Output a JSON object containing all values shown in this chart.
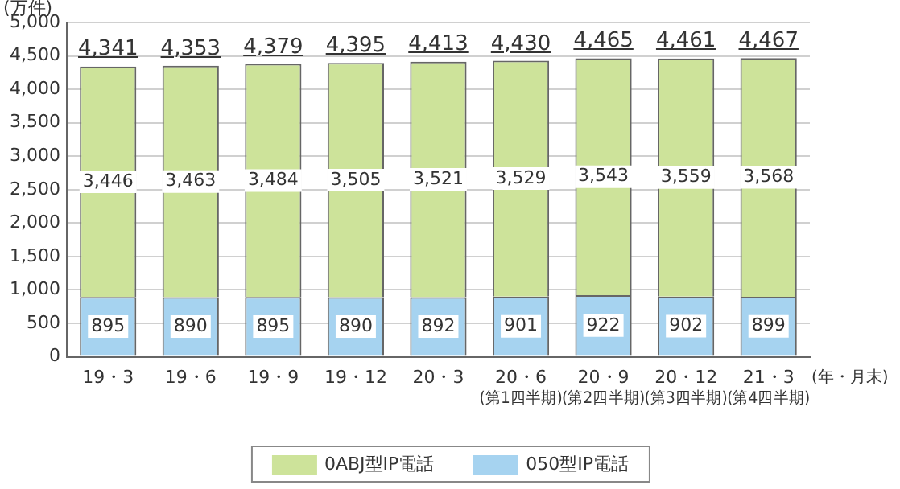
{
  "chart_data": {
    "type": "bar",
    "stacked": true,
    "ylabel": "(万件)",
    "xlabel": "(年・月末)",
    "categories": [
      "19・3",
      "19・6",
      "19・9",
      "19・12",
      "20・3",
      "20・6\n(第1四半期)",
      "20・9\n(第2四半期)",
      "20・12\n(第3四半期)",
      "21・3\n(第4四半期)"
    ],
    "series": [
      {
        "name": "050型IP電話",
        "color": "#a6d3f0",
        "values": [
          895,
          890,
          895,
          890,
          892,
          901,
          922,
          902,
          899
        ],
        "value_labels": [
          "895",
          "890",
          "895",
          "890",
          "892",
          "901",
          "922",
          "902",
          "899"
        ]
      },
      {
        "name": "0ABJ型IP電話",
        "color": "#cde39a",
        "values": [
          3446,
          3463,
          3484,
          3505,
          3521,
          3529,
          3543,
          3559,
          3568
        ],
        "value_labels": [
          "3,446",
          "3,463",
          "3,484",
          "3,505",
          "3,521",
          "3,529",
          "3,543",
          "3,559",
          "3,568"
        ]
      }
    ],
    "totals": [
      "4,341",
      "4,353",
      "4,379",
      "4,395",
      "4,413",
      "4,430",
      "4,465",
      "4,461",
      "4,467"
    ],
    "ylim": [
      0,
      5000
    ],
    "yticks": [
      0,
      500,
      {
        "value": 1000,
        "label": "1,000"
      },
      {
        "value": 1500,
        "label": "1,500"
      },
      {
        "value": 2000,
        "label": "2,000"
      },
      {
        "value": 2500,
        "label": "2,500"
      },
      {
        "value": 3000,
        "label": "3,000"
      },
      {
        "value": 3500,
        "label": "3,500"
      },
      {
        "value": 4000,
        "label": "4,000"
      },
      {
        "value": 4500,
        "label": "4,500"
      },
      {
        "value": 5000,
        "label": "5,000"
      }
    ],
    "grid": "y",
    "legend": "bottom"
  }
}
